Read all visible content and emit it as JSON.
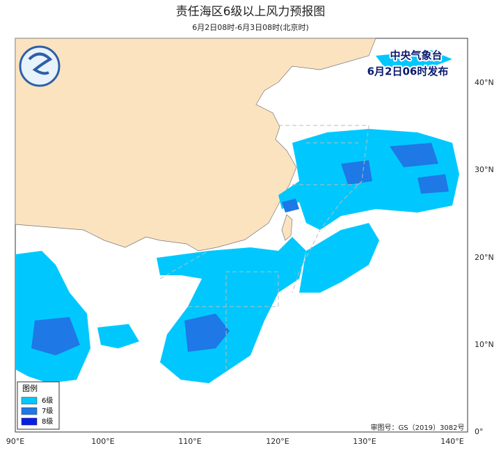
{
  "header": {
    "title": "责任海区6级以上风力预报图",
    "subtitle": "6月2日08时-6月3日08时(北京时)"
  },
  "stamp": {
    "agency": "中央气象台",
    "issued": "6月2日06时发布"
  },
  "legend": {
    "title": "图例",
    "items": [
      {
        "label": "6级",
        "color": "#00c8ff"
      },
      {
        "label": "7级",
        "color": "#1e78e6"
      },
      {
        "label": "8级",
        "color": "#0a1ee6"
      }
    ]
  },
  "axes": {
    "lon_labels": [
      "90°E",
      "100°E",
      "110°E",
      "120°E",
      "130°E",
      "140°E"
    ],
    "lat_labels": [
      "0°",
      "10°N",
      "20°N",
      "30°N",
      "40°N"
    ]
  },
  "footer": {
    "review": "审图号：GS（2019）3082号"
  }
}
